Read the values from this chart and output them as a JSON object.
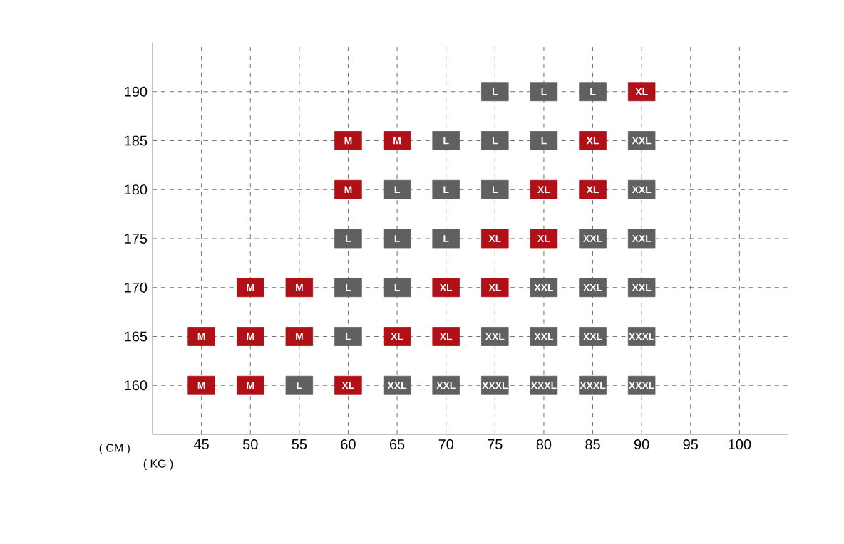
{
  "chart_data": {
    "type": "scatter",
    "xlabel": "( KG )",
    "ylabel": "( CM )",
    "xlim": [
      40,
      105
    ],
    "ylim": [
      155,
      195
    ],
    "xticks": [
      45,
      50,
      55,
      60,
      65,
      70,
      75,
      80,
      85,
      90,
      95,
      100
    ],
    "yticks": [
      160,
      165,
      170,
      175,
      180,
      185,
      190
    ],
    "grid": true,
    "marker": "square",
    "line_style": "dashed",
    "series": [
      {
        "name": "M",
        "color": "#b01018",
        "x": [
          45,
          45,
          50,
          50,
          50,
          55,
          55,
          60,
          65,
          60
        ],
        "values": [
          165,
          160,
          170,
          165,
          160,
          170,
          165,
          185,
          185,
          180
        ]
      },
      {
        "name": "L",
        "color": "#606060",
        "x": [
          75,
          80,
          85,
          70,
          75,
          80,
          65,
          70,
          75,
          60,
          65,
          70,
          60,
          65,
          60,
          55
        ],
        "values": [
          190,
          190,
          190,
          185,
          185,
          185,
          180,
          180,
          180,
          175,
          175,
          175,
          170,
          170,
          165,
          160
        ]
      },
      {
        "name": "XL",
        "color": "#b01018",
        "x": [
          90,
          85,
          80,
          85,
          75,
          80,
          70,
          75,
          65,
          70,
          60
        ],
        "values": [
          190,
          185,
          180,
          180,
          175,
          175,
          170,
          170,
          165,
          165,
          160
        ]
      },
      {
        "name": "XXL",
        "color": "#606060",
        "x": [
          90,
          90,
          85,
          90,
          80,
          85,
          90,
          75,
          80,
          85,
          65,
          70
        ],
        "values": [
          185,
          180,
          175,
          175,
          170,
          170,
          170,
          165,
          165,
          165,
          160,
          160
        ]
      },
      {
        "name": "XXXL",
        "color": "#606060",
        "x": [
          90,
          75,
          80,
          85,
          90
        ],
        "values": [
          165,
          160,
          160,
          160,
          160
        ]
      }
    ]
  }
}
